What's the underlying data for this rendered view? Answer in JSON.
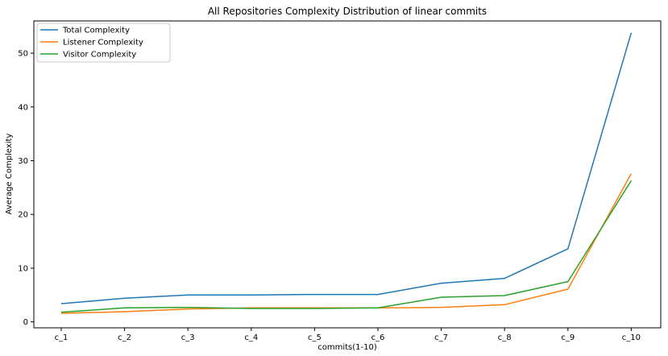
{
  "chart_data": {
    "type": "line",
    "title": "All Repositories Complexity Distribution of linear commits",
    "xlabel": "commits(1-10)",
    "ylabel": "Average Complexity",
    "categories": [
      "c_1",
      "c_2",
      "c_3",
      "c_4",
      "c_5",
      "c_6",
      "c_7",
      "c_8",
      "c_9",
      "c_10"
    ],
    "yticks": [
      0,
      10,
      20,
      30,
      40,
      50
    ],
    "ylim": [
      -1.1,
      56.0
    ],
    "grid": false,
    "legend_position": "top-left",
    "series": [
      {
        "name": "Total Complexity",
        "color": "#1f77b4",
        "values": [
          3.4,
          4.4,
          5.0,
          5.0,
          5.1,
          5.1,
          7.2,
          8.1,
          13.6,
          53.8
        ]
      },
      {
        "name": "Listener Complexity",
        "color": "#ff7f0e",
        "values": [
          1.6,
          1.9,
          2.4,
          2.6,
          2.6,
          2.6,
          2.7,
          3.2,
          6.1,
          27.6
        ]
      },
      {
        "name": "Visitor Complexity",
        "color": "#2ca02c",
        "values": [
          1.8,
          2.6,
          2.7,
          2.5,
          2.5,
          2.6,
          4.6,
          4.9,
          7.5,
          26.3
        ]
      }
    ]
  }
}
